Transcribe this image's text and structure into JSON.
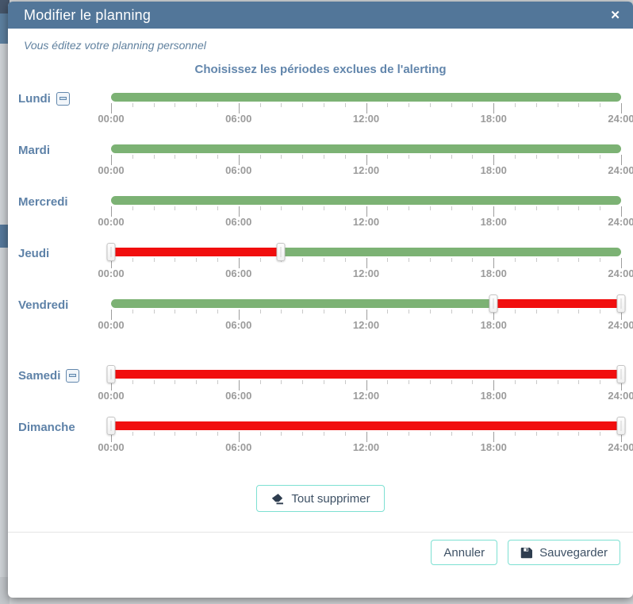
{
  "modal": {
    "title": "Modifier le planning",
    "close_glyph": "✕",
    "subtitle": "Vous éditez votre planning personnel",
    "heading": "Choisissez les périodes exclues de l'alerting"
  },
  "axis": {
    "tick_labels": [
      "00:00",
      "06:00",
      "12:00",
      "18:00",
      "24:00"
    ],
    "hours_start": 0,
    "hours_end": 24,
    "minor_tick_every_hours": 1,
    "major_tick_every_hours": 6
  },
  "days": [
    {
      "label": "Lundi",
      "has_remove_icon": true,
      "gap_before": false,
      "excluded_ranges": []
    },
    {
      "label": "Mardi",
      "has_remove_icon": false,
      "gap_before": false,
      "excluded_ranges": []
    },
    {
      "label": "Mercredi",
      "has_remove_icon": false,
      "gap_before": false,
      "excluded_ranges": []
    },
    {
      "label": "Jeudi",
      "has_remove_icon": false,
      "gap_before": false,
      "excluded_ranges": [
        {
          "start": "00:00",
          "end": "08:00"
        }
      ]
    },
    {
      "label": "Vendredi",
      "has_remove_icon": false,
      "gap_before": false,
      "excluded_ranges": [
        {
          "start": "18:00",
          "end": "24:00"
        }
      ]
    },
    {
      "label": "Samedi",
      "has_remove_icon": true,
      "gap_before": true,
      "excluded_ranges": [
        {
          "start": "00:00",
          "end": "24:00"
        }
      ]
    },
    {
      "label": "Dimanche",
      "has_remove_icon": false,
      "gap_before": false,
      "excluded_ranges": [
        {
          "start": "00:00",
          "end": "24:00"
        }
      ]
    }
  ],
  "buttons": {
    "clear_all": "Tout supprimer",
    "cancel": "Annuler",
    "save": "Sauvegarder"
  },
  "colors": {
    "header_bg": "#527699",
    "included_green": "#7cb274",
    "excluded_red": "#f10e0e",
    "button_border_teal": "#7de0d2",
    "day_label_blue": "#5e82a8"
  }
}
